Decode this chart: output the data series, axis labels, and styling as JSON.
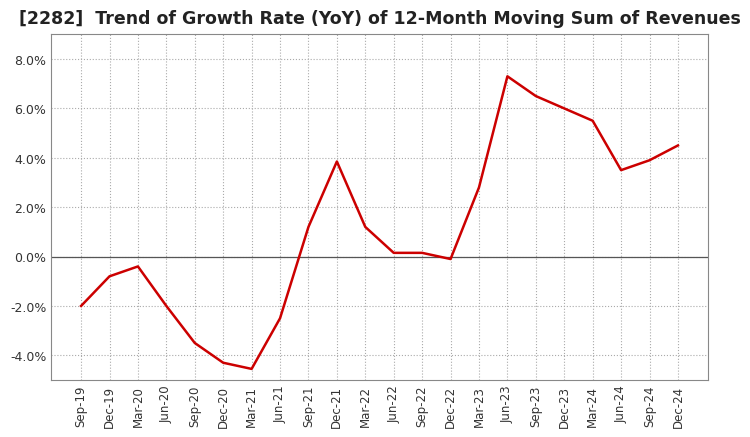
{
  "title": "[2282]  Trend of Growth Rate (YoY) of 12-Month Moving Sum of Revenues",
  "title_fontsize": 12.5,
  "line_color": "#cc0000",
  "background_color": "#ffffff",
  "grid_color": "#aaaaaa",
  "zero_line_color": "#555555",
  "ylim": [
    -5.0,
    9.0
  ],
  "yticks": [
    -4.0,
    -2.0,
    0.0,
    2.0,
    4.0,
    6.0,
    8.0
  ],
  "x_labels": [
    "Sep-19",
    "Dec-19",
    "Mar-20",
    "Jun-20",
    "Sep-20",
    "Dec-20",
    "Mar-21",
    "Jun-21",
    "Sep-21",
    "Dec-21",
    "Mar-22",
    "Jun-22",
    "Sep-22",
    "Dec-22",
    "Mar-23",
    "Jun-23",
    "Sep-23",
    "Dec-23",
    "Mar-24",
    "Jun-24",
    "Sep-24",
    "Dec-24"
  ],
  "values": [
    -2.0,
    -0.8,
    -0.4,
    -2.0,
    -3.5,
    -4.3,
    -4.55,
    -2.5,
    1.2,
    3.85,
    1.2,
    0.15,
    0.15,
    -0.1,
    2.8,
    7.3,
    6.5,
    6.0,
    5.5,
    3.5,
    3.9,
    4.5
  ]
}
